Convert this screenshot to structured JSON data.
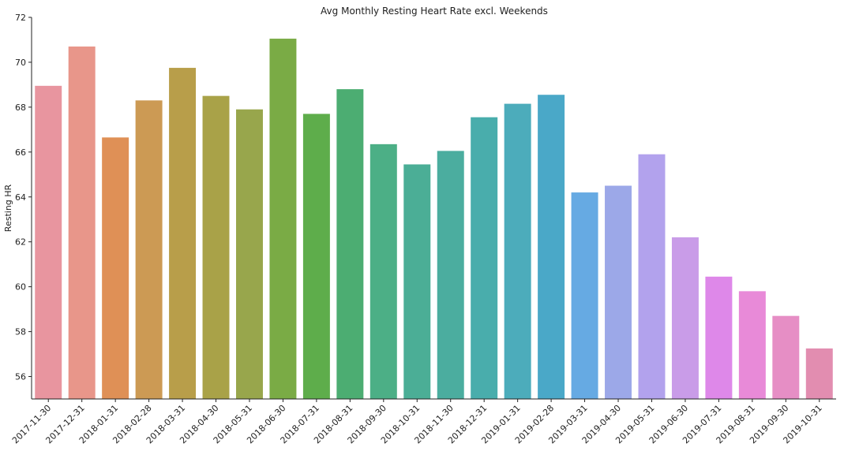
{
  "chart_data": {
    "type": "bar",
    "title": "Avg Monthly Resting Heart Rate excl. Weekends",
    "xlabel": "",
    "ylabel": "Resting HR",
    "ylim": [
      55,
      72
    ],
    "yticks": [
      56,
      58,
      60,
      62,
      64,
      66,
      68,
      70,
      72
    ],
    "grid": false,
    "legend": "none",
    "categories": [
      "2017-11-30",
      "2017-12-31",
      "2018-01-31",
      "2018-02-28",
      "2018-03-31",
      "2018-04-30",
      "2018-05-31",
      "2018-06-30",
      "2018-07-31",
      "2018-08-31",
      "2018-09-30",
      "2018-10-31",
      "2018-11-30",
      "2018-12-31",
      "2019-01-31",
      "2019-02-28",
      "2019-03-31",
      "2019-04-30",
      "2019-05-31",
      "2019-06-30",
      "2019-07-31",
      "2019-08-31",
      "2019-09-30",
      "2019-10-31"
    ],
    "values": [
      68.95,
      70.7,
      66.65,
      68.3,
      69.75,
      68.5,
      67.9,
      71.05,
      67.7,
      68.8,
      66.35,
      65.45,
      66.05,
      67.55,
      68.15,
      68.55,
      64.2,
      64.5,
      65.9,
      62.2,
      60.45,
      59.8,
      58.7,
      57.25
    ],
    "colors": [
      "#e8959f",
      "#e8968a",
      "#df9056",
      "#cc9a54",
      "#b89e4a",
      "#a9a248",
      "#98a64c",
      "#7aab45",
      "#5ead4b",
      "#4cad72",
      "#4caf86",
      "#4bae96",
      "#4bad9f",
      "#49adac",
      "#4cacbb",
      "#4aa8c8",
      "#66aae3",
      "#9ca8e8",
      "#b2a2ed",
      "#c99ce8",
      "#de88e9",
      "#e88ad8",
      "#e68ec5",
      "#e28db0"
    ]
  }
}
